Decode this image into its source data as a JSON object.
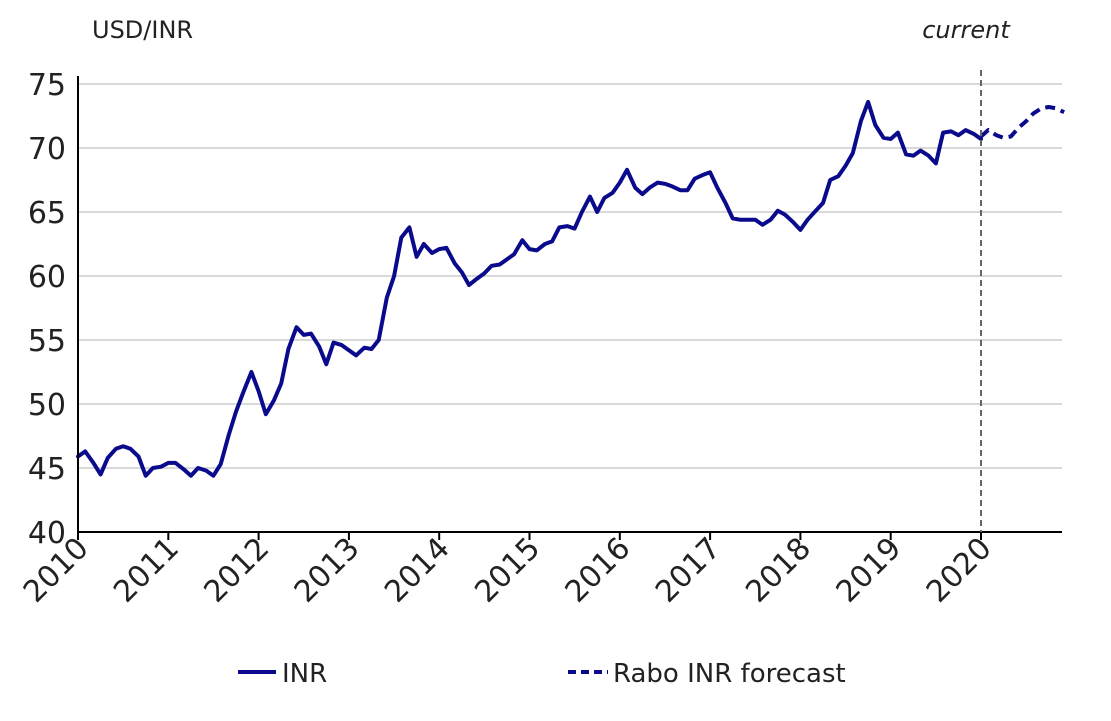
{
  "chart_data": {
    "type": "line",
    "ylabel": "USD/INR",
    "ylim": [
      40,
      75
    ],
    "yticks": [
      40,
      45,
      50,
      55,
      60,
      65,
      70,
      75
    ],
    "xlim": [
      2010,
      2020.92
    ],
    "xticks": [
      2010,
      2011,
      2012,
      2013,
      2014,
      2015,
      2016,
      2017,
      2018,
      2019,
      2020
    ],
    "grid": "horizontal",
    "legend_position": "bottom",
    "annotation": {
      "text": "current",
      "x": 2020
    },
    "series": [
      {
        "name": "INR",
        "color": "#0a0a8c",
        "style": "solid",
        "x": [
          2010.0,
          2010.08,
          2010.17,
          2010.25,
          2010.33,
          2010.42,
          2010.5,
          2010.58,
          2010.67,
          2010.75,
          2010.83,
          2010.92,
          2011.0,
          2011.08,
          2011.17,
          2011.25,
          2011.33,
          2011.42,
          2011.5,
          2011.58,
          2011.67,
          2011.75,
          2011.83,
          2011.92,
          2012.0,
          2012.08,
          2012.17,
          2012.25,
          2012.33,
          2012.42,
          2012.5,
          2012.58,
          2012.67,
          2012.75,
          2012.83,
          2012.92,
          2013.0,
          2013.08,
          2013.17,
          2013.25,
          2013.33,
          2013.42,
          2013.5,
          2013.58,
          2013.67,
          2013.75,
          2013.83,
          2013.92,
          2014.0,
          2014.08,
          2014.17,
          2014.25,
          2014.33,
          2014.42,
          2014.5,
          2014.58,
          2014.67,
          2014.75,
          2014.83,
          2014.92,
          2015.0,
          2015.08,
          2015.17,
          2015.25,
          2015.33,
          2015.42,
          2015.5,
          2015.58,
          2015.67,
          2015.75,
          2015.83,
          2015.92,
          2016.0,
          2016.08,
          2016.17,
          2016.25,
          2016.33,
          2016.42,
          2016.5,
          2016.58,
          2016.67,
          2016.75,
          2016.83,
          2016.92,
          2017.0,
          2017.08,
          2017.17,
          2017.25,
          2017.33,
          2017.42,
          2017.5,
          2017.58,
          2017.67,
          2017.75,
          2017.83,
          2017.92,
          2018.0,
          2018.08,
          2018.17,
          2018.25,
          2018.33,
          2018.42,
          2018.5,
          2018.58,
          2018.67,
          2018.75,
          2018.83,
          2018.92,
          2019.0,
          2019.08,
          2019.17,
          2019.25,
          2019.33,
          2019.42,
          2019.5,
          2019.58,
          2019.67,
          2019.75,
          2019.83,
          2019.92,
          2020.0
        ],
        "values": [
          45.9,
          46.3,
          45.4,
          44.5,
          45.8,
          46.5,
          46.7,
          46.5,
          45.9,
          44.4,
          45.0,
          45.1,
          45.4,
          45.4,
          44.9,
          44.4,
          45.0,
          44.8,
          44.4,
          45.3,
          47.6,
          49.4,
          50.9,
          52.5,
          51.0,
          49.2,
          50.3,
          51.6,
          54.3,
          56.0,
          55.4,
          55.5,
          54.5,
          53.1,
          54.8,
          54.6,
          54.2,
          53.8,
          54.4,
          54.3,
          55.0,
          58.3,
          60.0,
          63.0,
          63.8,
          61.5,
          62.5,
          61.8,
          62.1,
          62.2,
          61.0,
          60.3,
          59.3,
          59.8,
          60.2,
          60.8,
          60.9,
          61.3,
          61.7,
          62.8,
          62.1,
          62.0,
          62.5,
          62.7,
          63.8,
          63.9,
          63.7,
          65.0,
          66.2,
          65.0,
          66.1,
          66.5,
          67.3,
          68.3,
          66.9,
          66.4,
          66.9,
          67.3,
          67.2,
          67.0,
          66.7,
          66.7,
          67.6,
          67.9,
          68.1,
          66.9,
          65.7,
          64.5,
          64.4,
          64.4,
          64.4,
          64.0,
          64.4,
          65.1,
          64.8,
          64.2,
          63.6,
          64.4,
          65.1,
          65.7,
          67.5,
          67.8,
          68.6,
          69.6,
          72.1,
          73.6,
          71.8,
          70.8,
          70.7,
          71.2,
          69.5,
          69.4,
          69.8,
          69.4,
          68.8,
          71.2,
          71.3,
          71.0,
          71.4,
          71.1,
          70.7
        ]
      },
      {
        "name": "Rabo INR forecast",
        "color": "#0a0a8c",
        "style": "dashed",
        "x": [
          2020.0,
          2020.08,
          2020.17,
          2020.25,
          2020.33,
          2020.42,
          2020.5,
          2020.58,
          2020.67,
          2020.75,
          2020.83,
          2020.92
        ],
        "values": [
          70.9,
          71.4,
          71.0,
          70.8,
          70.9,
          71.6,
          72.1,
          72.7,
          73.1,
          73.2,
          73.1,
          72.8
        ]
      }
    ]
  }
}
